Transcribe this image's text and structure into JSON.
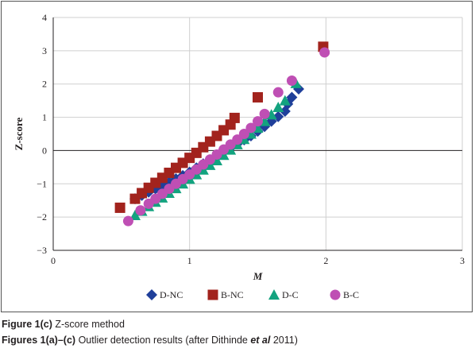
{
  "chart_data": {
    "type": "scatter",
    "title": "",
    "xlabel": "M",
    "ylabel": "Z-score",
    "xlim": [
      0,
      3
    ],
    "ylim": [
      -3,
      4
    ],
    "x_ticks": [
      "0",
      "1",
      "2",
      "3"
    ],
    "y_ticks": [
      "−3",
      "−2",
      "−1",
      "0",
      "1",
      "2",
      "3",
      "4"
    ],
    "grid": true,
    "legend_position": "bottom",
    "series": [
      {
        "name": "D-NC",
        "marker": "diamond",
        "color": "#1f3f9a",
        "points": [
          [
            0.6,
            -1.45
          ],
          [
            0.65,
            -1.35
          ],
          [
            0.7,
            -1.25
          ],
          [
            0.75,
            -1.15
          ],
          [
            0.8,
            -1.05
          ],
          [
            0.85,
            -0.95
          ],
          [
            0.9,
            -0.85
          ],
          [
            0.95,
            -0.75
          ],
          [
            1.0,
            -0.65
          ],
          [
            1.05,
            -0.52
          ],
          [
            1.1,
            -0.4
          ],
          [
            1.15,
            -0.28
          ],
          [
            1.2,
            -0.16
          ],
          [
            1.25,
            -0.04
          ],
          [
            1.3,
            0.08
          ],
          [
            1.35,
            0.2
          ],
          [
            1.4,
            0.32
          ],
          [
            1.45,
            0.44
          ],
          [
            1.5,
            0.58
          ],
          [
            1.55,
            0.72
          ],
          [
            1.6,
            0.88
          ],
          [
            1.65,
            1.02
          ],
          [
            1.7,
            1.18
          ],
          [
            1.72,
            1.4
          ],
          [
            1.75,
            1.6
          ],
          [
            1.8,
            1.85
          ]
        ]
      },
      {
        "name": "B-NC",
        "marker": "square",
        "color": "#a2231d",
        "points": [
          [
            0.49,
            -1.72
          ],
          [
            0.6,
            -1.45
          ],
          [
            0.65,
            -1.28
          ],
          [
            0.7,
            -1.12
          ],
          [
            0.75,
            -0.97
          ],
          [
            0.8,
            -0.82
          ],
          [
            0.85,
            -0.67
          ],
          [
            0.9,
            -0.52
          ],
          [
            0.95,
            -0.37
          ],
          [
            1.0,
            -0.22
          ],
          [
            1.05,
            -0.07
          ],
          [
            1.1,
            0.1
          ],
          [
            1.15,
            0.27
          ],
          [
            1.2,
            0.44
          ],
          [
            1.25,
            0.61
          ],
          [
            1.3,
            0.78
          ],
          [
            1.33,
            0.98
          ],
          [
            1.5,
            1.6
          ],
          [
            1.98,
            3.12
          ]
        ]
      },
      {
        "name": "D-C",
        "marker": "triangle",
        "color": "#13a37f",
        "points": [
          [
            0.6,
            -1.95
          ],
          [
            0.65,
            -1.82
          ],
          [
            0.7,
            -1.68
          ],
          [
            0.75,
            -1.55
          ],
          [
            0.8,
            -1.42
          ],
          [
            0.85,
            -1.28
          ],
          [
            0.9,
            -1.14
          ],
          [
            0.95,
            -1.0
          ],
          [
            1.0,
            -0.86
          ],
          [
            1.05,
            -0.72
          ],
          [
            1.1,
            -0.58
          ],
          [
            1.15,
            -0.44
          ],
          [
            1.2,
            -0.3
          ],
          [
            1.25,
            -0.14
          ],
          [
            1.3,
            0.02
          ],
          [
            1.35,
            0.18
          ],
          [
            1.4,
            0.34
          ],
          [
            1.45,
            0.5
          ],
          [
            1.5,
            0.68
          ],
          [
            1.55,
            0.88
          ],
          [
            1.6,
            1.08
          ],
          [
            1.65,
            1.3
          ],
          [
            1.7,
            1.5
          ],
          [
            1.78,
            2.02
          ]
        ]
      },
      {
        "name": "B-C",
        "marker": "circle",
        "color": "#bf4fb4",
        "points": [
          [
            0.55,
            -2.12
          ],
          [
            0.64,
            -1.8
          ],
          [
            0.7,
            -1.6
          ],
          [
            0.75,
            -1.45
          ],
          [
            0.8,
            -1.3
          ],
          [
            0.85,
            -1.15
          ],
          [
            0.9,
            -1.0
          ],
          [
            0.95,
            -0.86
          ],
          [
            1.0,
            -0.72
          ],
          [
            1.05,
            -0.57
          ],
          [
            1.1,
            -0.42
          ],
          [
            1.15,
            -0.27
          ],
          [
            1.2,
            -0.12
          ],
          [
            1.25,
            0.03
          ],
          [
            1.3,
            0.18
          ],
          [
            1.35,
            0.33
          ],
          [
            1.4,
            0.5
          ],
          [
            1.45,
            0.68
          ],
          [
            1.5,
            0.88
          ],
          [
            1.55,
            1.1
          ],
          [
            1.65,
            1.75
          ],
          [
            1.75,
            2.1
          ],
          [
            1.99,
            2.95
          ]
        ]
      }
    ]
  },
  "captions": {
    "figure_label": "Figure 1(c)",
    "figure_text": " Z-score method",
    "figures_label": "Figures 1(a)–(c)",
    "figures_text_before": " Outlier detection results (after Dithinde ",
    "figures_text_italic": "et al",
    "figures_text_after": " 2011)"
  }
}
